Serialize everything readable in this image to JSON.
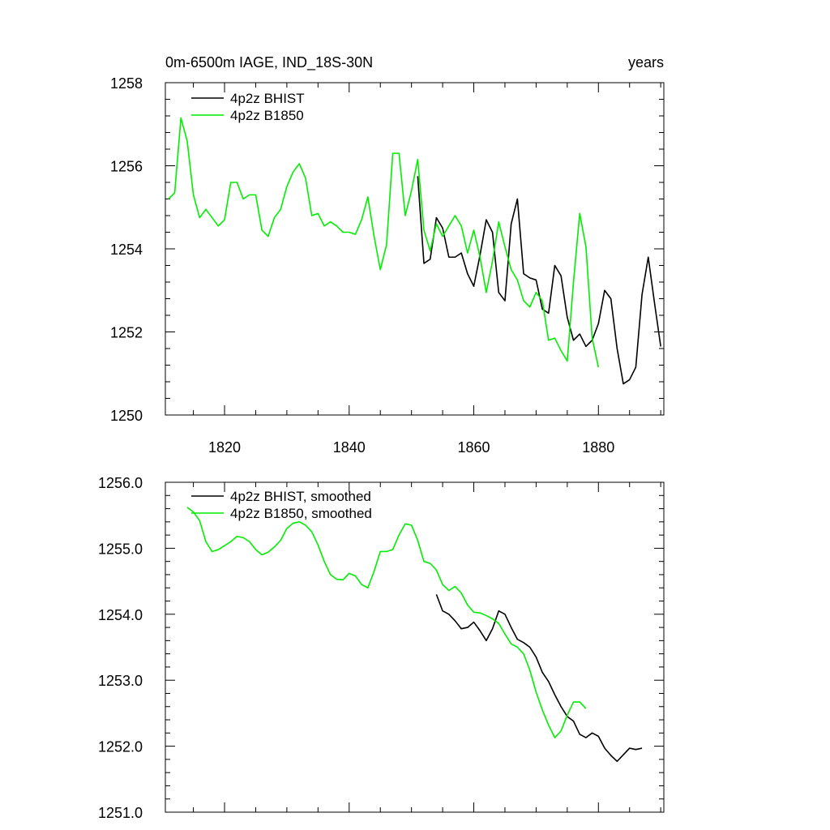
{
  "chart_data": [
    {
      "type": "line",
      "title": "0m-6500m IAGE, IND_18S-30N",
      "title_right": "years",
      "xlim": [
        1810.5,
        1890.5
      ],
      "ylim": [
        1250,
        1258
      ],
      "xticks": [
        1820,
        1840,
        1860,
        1880
      ],
      "xtick_labels": [
        "1820",
        "1840",
        "1860",
        "1880"
      ],
      "yticks": [
        1250,
        1252,
        1254,
        1256,
        1258
      ],
      "ytick_labels": [
        "1250",
        "1252",
        "1254",
        "1256",
        "1258"
      ],
      "grid": false,
      "legend_position": "top-left",
      "series": [
        {
          "name": "4p2z BHIST",
          "color": "#000000",
          "x_start": 1851,
          "values": [
            1255.75,
            1253.65,
            1253.75,
            1254.75,
            1254.5,
            1253.8,
            1253.8,
            1253.9,
            1253.4,
            1253.1,
            1253.85,
            1254.7,
            1254.4,
            1252.95,
            1252.75,
            1254.6,
            1255.2,
            1253.4,
            1253.3,
            1253.25,
            1252.55,
            1252.45,
            1253.6,
            1253.35,
            1252.35,
            1251.8,
            1251.95,
            1251.65,
            1251.8,
            1252.2,
            1253.0,
            1252.8,
            1251.6,
            1250.75,
            1250.85,
            1251.15,
            1252.9,
            1253.8,
            1252.7,
            1251.65
          ]
        },
        {
          "name": "4p2z B1850",
          "color": "#00ee00",
          "x_start": 1811,
          "values": [
            1255.2,
            1255.35,
            1257.15,
            1256.6,
            1255.3,
            1254.75,
            1254.95,
            1254.75,
            1254.55,
            1254.7,
            1255.6,
            1255.6,
            1255.2,
            1255.3,
            1255.3,
            1254.45,
            1254.3,
            1254.75,
            1254.95,
            1255.5,
            1255.85,
            1256.05,
            1255.7,
            1254.8,
            1254.85,
            1254.55,
            1254.65,
            1254.55,
            1254.4,
            1254.4,
            1254.35,
            1254.7,
            1255.25,
            1254.3,
            1253.5,
            1254.1,
            1256.3,
            1256.3,
            1254.8,
            1255.4,
            1256.15,
            1254.45,
            1253.95,
            1254.6,
            1254.3,
            1254.55,
            1254.8,
            1254.55,
            1253.9,
            1254.45,
            1253.8,
            1252.95,
            1253.7,
            1254.65,
            1254.05,
            1253.5,
            1253.25,
            1252.75,
            1252.6,
            1252.95,
            1252.75,
            1251.8,
            1251.85,
            1251.55,
            1251.3,
            1253.2,
            1254.85,
            1254.05,
            1251.85,
            1251.15
          ]
        }
      ]
    },
    {
      "type": "line",
      "xlim": [
        1810.5,
        1890.5
      ],
      "ylim": [
        1251.0,
        1256.0
      ],
      "xticks": [
        1820,
        1840,
        1860,
        1880
      ],
      "xtick_labels": [],
      "yticks": [
        1251.0,
        1252.0,
        1253.0,
        1254.0,
        1255.0,
        1256.0
      ],
      "ytick_labels": [
        "1251.0",
        "1252.0",
        "1253.0",
        "1254.0",
        "1255.0",
        "1256.0"
      ],
      "grid": false,
      "legend_position": "top-left",
      "series": [
        {
          "name": "4p2z BHIST, smoothed",
          "color": "#000000",
          "x_start": 1854,
          "values": [
            1254.3,
            1254.05,
            1254.0,
            1253.9,
            1253.78,
            1253.8,
            1253.88,
            1253.75,
            1253.6,
            1253.78,
            1254.05,
            1254.0,
            1253.8,
            1253.62,
            1253.57,
            1253.5,
            1253.35,
            1253.12,
            1252.98,
            1252.78,
            1252.6,
            1252.45,
            1252.38,
            1252.18,
            1252.13,
            1252.2,
            1252.15,
            1251.97,
            1251.86,
            1251.77,
            1251.87,
            1251.97,
            1251.95,
            1251.97
          ]
        },
        {
          "name": "4p2z B1850, smoothed",
          "color": "#00ee00",
          "x_start": 1814,
          "values": [
            1255.62,
            1255.55,
            1255.42,
            1255.1,
            1254.95,
            1254.98,
            1255.04,
            1255.1,
            1255.18,
            1255.16,
            1255.1,
            1254.98,
            1254.9,
            1254.94,
            1255.02,
            1255.12,
            1255.3,
            1255.38,
            1255.4,
            1255.35,
            1255.25,
            1255.05,
            1254.8,
            1254.6,
            1254.53,
            1254.52,
            1254.62,
            1254.58,
            1254.45,
            1254.4,
            1254.65,
            1254.95,
            1254.95,
            1254.98,
            1255.2,
            1255.37,
            1255.35,
            1255.12,
            1254.8,
            1254.77,
            1254.67,
            1254.45,
            1254.36,
            1254.42,
            1254.32,
            1254.14,
            1254.03,
            1254.02,
            1253.98,
            1253.93,
            1253.86,
            1253.7,
            1253.55,
            1253.5,
            1253.4,
            1253.15,
            1252.82,
            1252.55,
            1252.32,
            1252.13,
            1252.23,
            1252.47,
            1252.67,
            1252.67,
            1252.57
          ]
        }
      ]
    }
  ]
}
